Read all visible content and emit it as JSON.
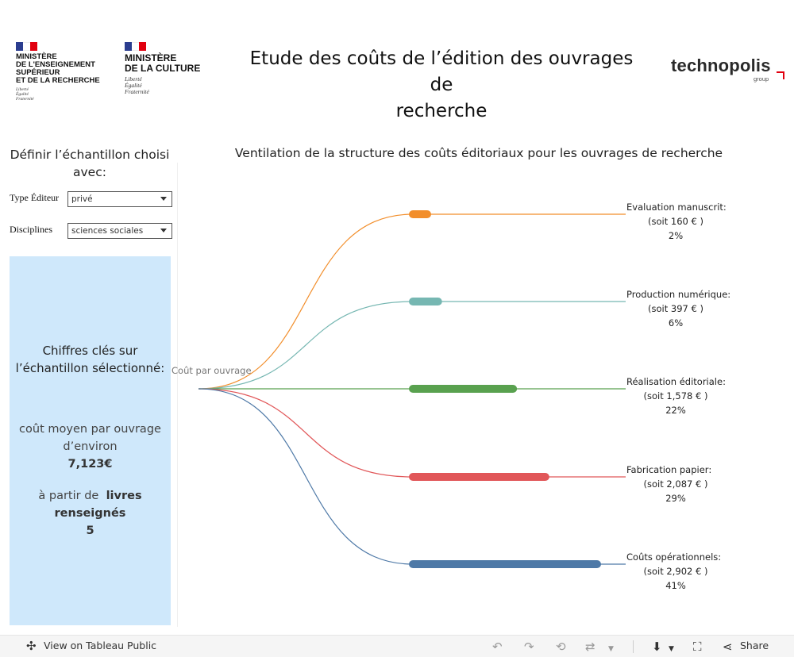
{
  "header": {
    "mesr_logo": {
      "lines": [
        "MINISTÈRE",
        "DE L'ENSEIGNEMENT",
        "SUPÉRIEUR",
        "ET DE LA RECHERCHE"
      ],
      "motto": [
        "Liberté",
        "Égalité",
        "Fraternité"
      ]
    },
    "culture_logo": {
      "lines": [
        "MINISTÈRE",
        "DE LA CULTURE"
      ],
      "motto": [
        "Liberté",
        "Égalité",
        "Fraternité"
      ]
    },
    "title_line1": "Etude des coûts de l’édition des ouvrages de",
    "title_line2": "recherche",
    "partner_logo": {
      "word": "technopolis",
      "sub": "group"
    }
  },
  "filters": {
    "title_line1": "Définir l’échantillon choisi",
    "title_line2": "avec:",
    "type_editeur": {
      "label": "Type Éditeur",
      "value": "privé"
    },
    "disciplines": {
      "label": "Disciplines",
      "value": "sciences sociales"
    }
  },
  "kpi": {
    "title_line1": "Chiffres clés sur",
    "title_line2": "l’échantillon sélectionné:",
    "cost_line1": "coût moyen par ouvrage",
    "cost_line2": "d’environ",
    "cost_value": "7,123€",
    "books_prefix": "à partir de",
    "books_line1": "livres",
    "books_line2": "renseignés",
    "books_value": "5"
  },
  "chart_data": {
    "type": "sankey",
    "title": "Ventilation de la structure des coûts éditoriaux pour les ouvrages de recherche",
    "source": "Coût par ouvrage",
    "items": [
      {
        "name": "Evaluation manuscrit:",
        "amount_label": "(soit 160 € )",
        "amount": 160,
        "percent_label": "2%",
        "percent": 2,
        "color": "#f28e2b"
      },
      {
        "name": "Production numérique:",
        "amount_label": "(soit 397 € )",
        "amount": 397,
        "percent_label": "6%",
        "percent": 6,
        "color": "#76b7b2"
      },
      {
        "name": "Réalisation éditoriale:",
        "amount_label": "(soit 1,578 € )",
        "amount": 1578,
        "percent_label": "22%",
        "percent": 22,
        "color": "#59a14f"
      },
      {
        "name": "Fabrication papier:",
        "amount_label": "(soit 2,087 € )",
        "amount": 2087,
        "percent_label": "29%",
        "percent": 29,
        "color": "#e15759"
      },
      {
        "name": "Coûts opérationnels:",
        "amount_label": "(soit 2,902 € )",
        "amount": 2902,
        "percent_label": "41%",
        "percent": 41,
        "color": "#4e79a7"
      }
    ]
  },
  "toolbar": {
    "view_label": "View on Tableau Public",
    "share_label": "Share",
    "icons": [
      "undo-icon",
      "redo-icon",
      "revert-icon",
      "refresh-icon",
      "download-icon",
      "fullscreen-icon",
      "share-icon"
    ]
  }
}
